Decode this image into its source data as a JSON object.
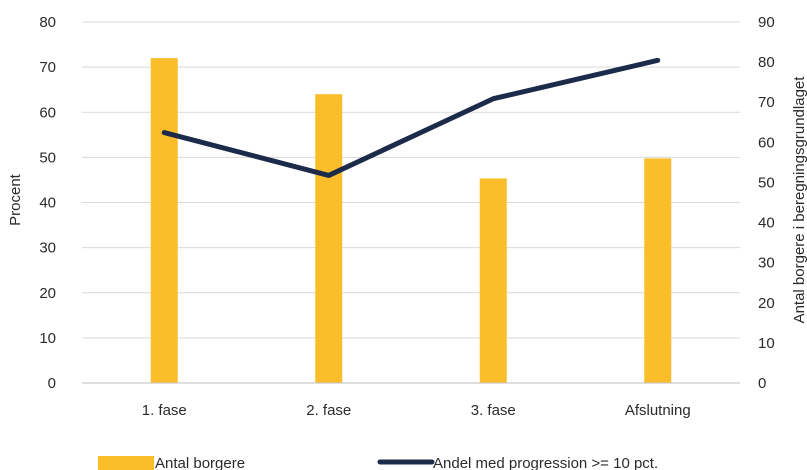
{
  "chart_data": {
    "type": "bar",
    "categories": [
      "1. fase",
      "2. fase",
      "3. fase",
      "Afslutning"
    ],
    "series": [
      {
        "name": "Antal borgere",
        "kind": "bar",
        "axis": "right",
        "color": "#FBBD2A",
        "values": [
          81,
          72,
          51,
          56
        ]
      },
      {
        "name": "Andel med progression >= 10 pct.",
        "kind": "line",
        "axis": "left",
        "color": "#1C2B4A",
        "values": [
          55.5,
          46,
          63,
          71.5
        ]
      }
    ],
    "ylabel": "Procent",
    "ylim": [
      0,
      80
    ],
    "yticks": [
      0,
      10,
      20,
      30,
      40,
      50,
      60,
      70,
      80
    ],
    "y2label": "Antal borgere i beregningsgrundlaget",
    "y2lim": [
      0,
      90
    ],
    "y2ticks": [
      0,
      10,
      20,
      30,
      40,
      50,
      60,
      70,
      80,
      90
    ],
    "grid": true,
    "legend_position": "bottom"
  }
}
